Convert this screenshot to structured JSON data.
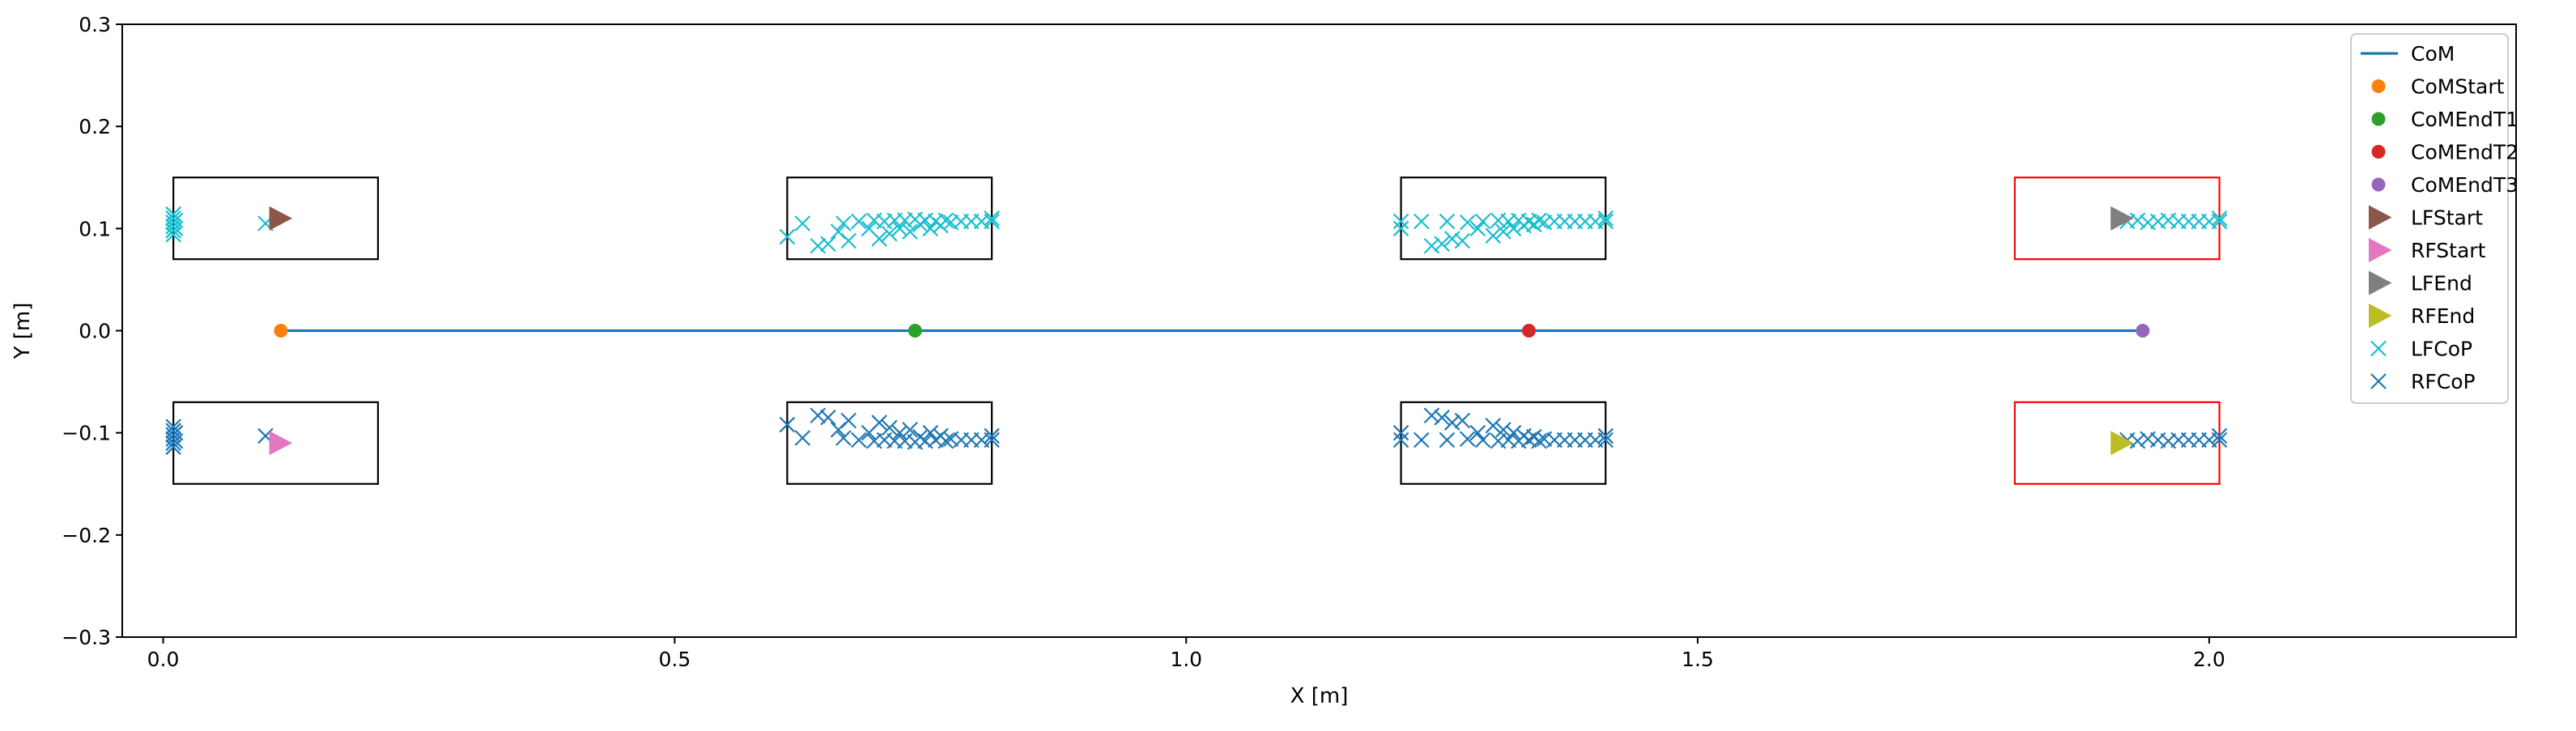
{
  "chart_data": {
    "type": "scatter",
    "title": "",
    "xlabel": "X [m]",
    "ylabel": "Y [m]",
    "xlim": [
      -0.04,
      2.3
    ],
    "ylim": [
      -0.3,
      0.3
    ],
    "xticks": [
      0.0,
      0.5,
      1.0,
      1.5,
      2.0
    ],
    "xtick_labels": [
      "0.0",
      "0.5",
      "1.0",
      "1.5",
      "2.0"
    ],
    "yticks": [
      -0.3,
      -0.2,
      -0.1,
      0.0,
      0.1,
      0.2,
      0.3
    ],
    "ytick_labels": [
      "−0.3",
      "−0.2",
      "−0.1",
      "0.0",
      "0.1",
      "0.2",
      "0.3"
    ],
    "grid": false,
    "legend_position": "top-right",
    "colors": {
      "CoM": "#1f77b4",
      "CoMStart": "#ff7f0e",
      "CoMEndT1": "#2ca02c",
      "CoMEndT2": "#d62728",
      "CoMEndT3": "#9467bd",
      "LFStart": "#8c564b",
      "RFStart": "#e377c2",
      "LFEnd": "#7f7f7f",
      "RFEnd": "#bcbd22",
      "LFCoP": "#17becf",
      "RFCoP": "#1f77b4",
      "footprint": "#000000",
      "footprint_final": "#ff0000"
    },
    "legend": [
      {
        "label": "CoM",
        "marker": "line"
      },
      {
        "label": "CoMStart",
        "marker": "circle"
      },
      {
        "label": "CoMEndT1",
        "marker": "circle"
      },
      {
        "label": "CoMEndT2",
        "marker": "circle"
      },
      {
        "label": "CoMEndT3",
        "marker": "circle"
      },
      {
        "label": "LFStart",
        "marker": "triangle"
      },
      {
        "label": "RFStart",
        "marker": "triangle"
      },
      {
        "label": "LFEnd",
        "marker": "triangle"
      },
      {
        "label": "RFEnd",
        "marker": "triangle"
      },
      {
        "label": "LFCoP",
        "marker": "x"
      },
      {
        "label": "RFCoP",
        "marker": "x"
      }
    ],
    "com_line": {
      "x": [
        0.115,
        1.935
      ],
      "y": [
        0.0,
        0.0
      ]
    },
    "com_points": [
      {
        "name": "CoMStart",
        "x": 0.115,
        "y": 0.0
      },
      {
        "name": "CoMEndT1",
        "x": 0.735,
        "y": 0.0
      },
      {
        "name": "CoMEndT2",
        "x": 1.335,
        "y": 0.0
      },
      {
        "name": "CoMEndT3",
        "x": 1.935,
        "y": 0.0
      }
    ],
    "foot_points": [
      {
        "name": "LFStart",
        "x": 0.11,
        "y": 0.11
      },
      {
        "name": "RFStart",
        "x": 0.11,
        "y": -0.11
      },
      {
        "name": "LFEnd",
        "x": 1.91,
        "y": 0.11
      },
      {
        "name": "RFEnd",
        "x": 1.91,
        "y": -0.11
      }
    ],
    "footprints": [
      {
        "x0": 0.01,
        "x1": 0.21,
        "y0": 0.07,
        "y1": 0.15,
        "final": false
      },
      {
        "x0": 0.01,
        "x1": 0.21,
        "y0": -0.15,
        "y1": -0.07,
        "final": false
      },
      {
        "x0": 0.61,
        "x1": 0.81,
        "y0": 0.07,
        "y1": 0.15,
        "final": false
      },
      {
        "x0": 0.61,
        "x1": 0.81,
        "y0": -0.15,
        "y1": -0.07,
        "final": false
      },
      {
        "x0": 1.21,
        "x1": 1.41,
        "y0": 0.07,
        "y1": 0.15,
        "final": false
      },
      {
        "x0": 1.21,
        "x1": 1.41,
        "y0": -0.15,
        "y1": -0.07,
        "final": false
      },
      {
        "x0": 1.81,
        "x1": 2.01,
        "y0": 0.07,
        "y1": 0.15,
        "final": true
      },
      {
        "x0": 1.81,
        "x1": 2.01,
        "y0": -0.15,
        "y1": -0.07,
        "final": true
      }
    ],
    "cop_series": [
      {
        "name": "LFCoP",
        "points": [
          [
            0.01,
            0.094
          ],
          [
            0.01,
            0.098
          ],
          [
            0.01,
            0.102
          ],
          [
            0.01,
            0.106
          ],
          [
            0.01,
            0.11
          ],
          [
            0.01,
            0.114
          ],
          [
            0.012,
            0.1
          ],
          [
            0.012,
            0.108
          ],
          [
            0.1,
            0.105
          ],
          [
            0.61,
            0.092
          ],
          [
            0.625,
            0.105
          ],
          [
            0.64,
            0.083
          ],
          [
            0.65,
            0.085
          ],
          [
            0.66,
            0.097
          ],
          [
            0.67,
            0.088
          ],
          [
            0.665,
            0.105
          ],
          [
            0.68,
            0.107
          ],
          [
            0.69,
            0.1
          ],
          [
            0.695,
            0.108
          ],
          [
            0.7,
            0.09
          ],
          [
            0.705,
            0.107
          ],
          [
            0.71,
            0.095
          ],
          [
            0.715,
            0.108
          ],
          [
            0.72,
            0.1
          ],
          [
            0.725,
            0.108
          ],
          [
            0.73,
            0.097
          ],
          [
            0.735,
            0.109
          ],
          [
            0.74,
            0.104
          ],
          [
            0.745,
            0.108
          ],
          [
            0.75,
            0.1
          ],
          [
            0.755,
            0.107
          ],
          [
            0.76,
            0.103
          ],
          [
            0.765,
            0.108
          ],
          [
            0.77,
            0.106
          ],
          [
            0.78,
            0.107
          ],
          [
            0.79,
            0.107
          ],
          [
            0.8,
            0.107
          ],
          [
            0.81,
            0.107
          ],
          [
            0.81,
            0.11
          ],
          [
            1.21,
            0.1
          ],
          [
            1.21,
            0.107
          ],
          [
            1.23,
            0.107
          ],
          [
            1.24,
            0.083
          ],
          [
            1.25,
            0.085
          ],
          [
            1.255,
            0.107
          ],
          [
            1.26,
            0.09
          ],
          [
            1.27,
            0.088
          ],
          [
            1.275,
            0.106
          ],
          [
            1.285,
            0.1
          ],
          [
            1.29,
            0.107
          ],
          [
            1.3,
            0.093
          ],
          [
            1.305,
            0.108
          ],
          [
            1.31,
            0.097
          ],
          [
            1.315,
            0.107
          ],
          [
            1.32,
            0.1
          ],
          [
            1.325,
            0.108
          ],
          [
            1.33,
            0.103
          ],
          [
            1.335,
            0.107
          ],
          [
            1.34,
            0.104
          ],
          [
            1.345,
            0.108
          ],
          [
            1.35,
            0.106
          ],
          [
            1.36,
            0.107
          ],
          [
            1.37,
            0.107
          ],
          [
            1.38,
            0.107
          ],
          [
            1.39,
            0.107
          ],
          [
            1.4,
            0.107
          ],
          [
            1.41,
            0.107
          ],
          [
            1.41,
            0.11
          ],
          [
            1.92,
            0.107
          ],
          [
            1.93,
            0.108
          ],
          [
            1.94,
            0.106
          ],
          [
            1.95,
            0.107
          ],
          [
            1.96,
            0.108
          ],
          [
            1.97,
            0.107
          ],
          [
            1.98,
            0.107
          ],
          [
            1.99,
            0.107
          ],
          [
            2.0,
            0.107
          ],
          [
            2.01,
            0.107
          ],
          [
            2.01,
            0.11
          ]
        ]
      },
      {
        "name": "RFCoP",
        "points": [
          [
            0.01,
            -0.094
          ],
          [
            0.01,
            -0.098
          ],
          [
            0.01,
            -0.102
          ],
          [
            0.01,
            -0.106
          ],
          [
            0.01,
            -0.11
          ],
          [
            0.01,
            -0.114
          ],
          [
            0.012,
            -0.1
          ],
          [
            0.012,
            -0.108
          ],
          [
            0.1,
            -0.103
          ],
          [
            0.61,
            -0.092
          ],
          [
            0.625,
            -0.105
          ],
          [
            0.64,
            -0.083
          ],
          [
            0.65,
            -0.085
          ],
          [
            0.66,
            -0.097
          ],
          [
            0.67,
            -0.088
          ],
          [
            0.665,
            -0.105
          ],
          [
            0.68,
            -0.107
          ],
          [
            0.69,
            -0.1
          ],
          [
            0.695,
            -0.108
          ],
          [
            0.7,
            -0.09
          ],
          [
            0.705,
            -0.107
          ],
          [
            0.71,
            -0.095
          ],
          [
            0.715,
            -0.108
          ],
          [
            0.72,
            -0.1
          ],
          [
            0.725,
            -0.108
          ],
          [
            0.73,
            -0.097
          ],
          [
            0.735,
            -0.109
          ],
          [
            0.74,
            -0.104
          ],
          [
            0.745,
            -0.108
          ],
          [
            0.75,
            -0.1
          ],
          [
            0.755,
            -0.107
          ],
          [
            0.76,
            -0.103
          ],
          [
            0.765,
            -0.108
          ],
          [
            0.77,
            -0.106
          ],
          [
            0.78,
            -0.107
          ],
          [
            0.79,
            -0.107
          ],
          [
            0.8,
            -0.107
          ],
          [
            0.81,
            -0.107
          ],
          [
            0.81,
            -0.103
          ],
          [
            1.21,
            -0.1
          ],
          [
            1.21,
            -0.107
          ],
          [
            1.23,
            -0.107
          ],
          [
            1.24,
            -0.083
          ],
          [
            1.25,
            -0.085
          ],
          [
            1.255,
            -0.107
          ],
          [
            1.26,
            -0.09
          ],
          [
            1.27,
            -0.088
          ],
          [
            1.275,
            -0.106
          ],
          [
            1.285,
            -0.1
          ],
          [
            1.29,
            -0.107
          ],
          [
            1.3,
            -0.093
          ],
          [
            1.305,
            -0.108
          ],
          [
            1.31,
            -0.097
          ],
          [
            1.315,
            -0.107
          ],
          [
            1.32,
            -0.1
          ],
          [
            1.325,
            -0.108
          ],
          [
            1.33,
            -0.103
          ],
          [
            1.335,
            -0.107
          ],
          [
            1.34,
            -0.104
          ],
          [
            1.345,
            -0.108
          ],
          [
            1.35,
            -0.106
          ],
          [
            1.36,
            -0.107
          ],
          [
            1.37,
            -0.107
          ],
          [
            1.38,
            -0.107
          ],
          [
            1.39,
            -0.107
          ],
          [
            1.4,
            -0.107
          ],
          [
            1.41,
            -0.107
          ],
          [
            1.41,
            -0.103
          ],
          [
            1.92,
            -0.107
          ],
          [
            1.93,
            -0.108
          ],
          [
            1.94,
            -0.106
          ],
          [
            1.95,
            -0.107
          ],
          [
            1.96,
            -0.108
          ],
          [
            1.97,
            -0.107
          ],
          [
            1.98,
            -0.107
          ],
          [
            1.99,
            -0.107
          ],
          [
            2.0,
            -0.107
          ],
          [
            2.01,
            -0.107
          ],
          [
            2.01,
            -0.103
          ]
        ]
      }
    ]
  }
}
